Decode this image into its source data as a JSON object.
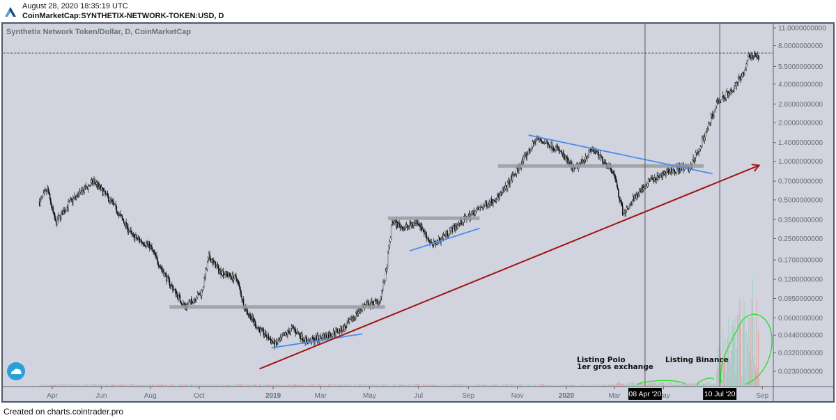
{
  "header": {
    "timestamp": "August 28, 2020 18:35:19 UTC",
    "symbol": "CoinMarketCap:SYNTHETIX-NETWORK-TOKEN:USD, D"
  },
  "footer": {
    "credit": "Created on charts.cointrader.pro"
  },
  "colors": {
    "background": "#d1d4de",
    "up": "#26a69a",
    "down": "#111111",
    "trend_blue": "#4a8cf0",
    "trend_red": "#a01515",
    "support": "#9a9ca2",
    "annotation_green": "#22e022"
  },
  "chart_data": {
    "type": "candlestick",
    "title": "Synthetix Network Token/Dollar, D, CoinMarketCap",
    "scale": "log",
    "ylim": [
      0.021,
      12
    ],
    "y_ticks": [
      "11.0000000000",
      "8.0000000000",
      "5.5000000000",
      "4.0000000000",
      "2.8000000000",
      "2.0000000000",
      "1.4000000000",
      "1.0000000000",
      "0.7000000000",
      "0.5000000000",
      "0.3500000000",
      "0.2500000000",
      "0.1700000000",
      "0.1200000000",
      "0.0850000000",
      "0.0600000000",
      "0.0440000000",
      "0.0320000000",
      "0.0230000000"
    ],
    "x_ticks": [
      {
        "label": "Apr",
        "date": "2018-04-01"
      },
      {
        "label": "Jun",
        "date": "2018-06-01"
      },
      {
        "label": "Aug",
        "date": "2018-08-01"
      },
      {
        "label": "Oct",
        "date": "2018-10-01"
      },
      {
        "label": "2019",
        "date": "2019-01-01",
        "bold": true
      },
      {
        "label": "Mar",
        "date": "2019-03-01"
      },
      {
        "label": "May",
        "date": "2019-05-01"
      },
      {
        "label": "Jul",
        "date": "2019-07-01"
      },
      {
        "label": "Sep",
        "date": "2019-09-01"
      },
      {
        "label": "Nov",
        "date": "2019-11-01"
      },
      {
        "label": "2020",
        "date": "2020-01-01",
        "bold": true
      },
      {
        "label": "Mar",
        "date": "2020-03-01"
      },
      {
        "label": "May",
        "date": "2020-05-01"
      },
      {
        "label": "Sep",
        "date": "2020-09-01"
      }
    ],
    "price_path": [
      [
        "2018-03-16",
        0.48
      ],
      [
        "2018-03-26",
        0.6
      ],
      [
        "2018-04-05",
        0.33
      ],
      [
        "2018-04-23",
        0.48
      ],
      [
        "2018-05-23",
        0.7
      ],
      [
        "2018-06-14",
        0.48
      ],
      [
        "2018-07-10",
        0.26
      ],
      [
        "2018-07-31",
        0.22
      ],
      [
        "2018-08-22",
        0.12
      ],
      [
        "2018-09-13",
        0.073
      ],
      [
        "2018-10-04",
        0.095
      ],
      [
        "2018-10-13",
        0.18
      ],
      [
        "2018-10-26",
        0.14
      ],
      [
        "2018-11-17",
        0.12
      ],
      [
        "2018-11-26",
        0.073
      ],
      [
        "2018-12-13",
        0.05
      ],
      [
        "2019-01-04",
        0.037
      ],
      [
        "2019-01-25",
        0.05
      ],
      [
        "2019-02-12",
        0.039
      ],
      [
        "2019-03-10",
        0.044
      ],
      [
        "2019-03-31",
        0.05
      ],
      [
        "2019-04-22",
        0.073
      ],
      [
        "2019-05-14",
        0.082
      ],
      [
        "2019-05-22",
        0.14
      ],
      [
        "2019-05-29",
        0.34
      ],
      [
        "2019-06-13",
        0.3
      ],
      [
        "2019-06-30",
        0.34
      ],
      [
        "2019-07-18",
        0.22
      ],
      [
        "2019-08-13",
        0.3
      ],
      [
        "2019-09-08",
        0.4
      ],
      [
        "2019-10-12",
        0.55
      ],
      [
        "2019-11-03",
        0.9
      ],
      [
        "2019-11-25",
        1.5
      ],
      [
        "2019-12-21",
        1.25
      ],
      [
        "2020-01-11",
        0.85
      ],
      [
        "2020-02-02",
        1.25
      ],
      [
        "2020-02-28",
        0.85
      ],
      [
        "2020-03-12",
        0.38
      ],
      [
        "2020-03-21",
        0.48
      ],
      [
        "2020-04-12",
        0.7
      ],
      [
        "2020-05-08",
        0.85
      ],
      [
        "2020-06-03",
        0.9
      ],
      [
        "2020-06-20",
        1.5
      ],
      [
        "2020-07-07",
        2.9
      ],
      [
        "2020-07-25",
        3.6
      ],
      [
        "2020-08-11",
        5.2
      ],
      [
        "2020-08-15",
        6.8
      ],
      [
        "2020-08-28",
        6.4
      ]
    ],
    "current_price_line": 7.0,
    "support_levels": [
      {
        "price": 0.073,
        "from": "2018-08-25",
        "to": "2019-05-20"
      },
      {
        "price": 0.36,
        "from": "2019-05-24",
        "to": "2019-09-15"
      },
      {
        "price": 0.92,
        "from": "2019-10-08",
        "to": "2020-06-20"
      }
    ],
    "trendlines_blue": [
      {
        "from": [
          "2018-12-30",
          0.035
        ],
        "to": [
          "2019-04-22",
          0.045
        ]
      },
      {
        "from": [
          "2019-06-20",
          0.2
        ],
        "to": [
          "2019-09-15",
          0.3
        ]
      },
      {
        "from": [
          "2019-11-15",
          1.6
        ],
        "to": [
          "2020-07-01",
          0.8
        ]
      }
    ],
    "trendline_red": {
      "from": [
        "2018-12-15",
        0.024
      ],
      "to": [
        "2020-08-28",
        0.93
      ]
    },
    "vertical_markers": [
      {
        "label": "08 Apr '20",
        "date": "2020-04-08"
      },
      {
        "label": "10 Jul '20",
        "date": "2020-07-10"
      }
    ],
    "annotations": [
      {
        "line1": "Listing Polo",
        "line2": "1er gros exchange"
      },
      {
        "line1": "Listing Binance"
      }
    ]
  }
}
